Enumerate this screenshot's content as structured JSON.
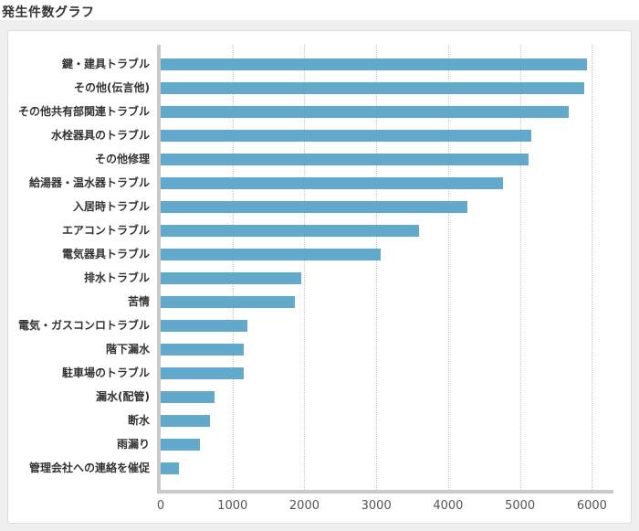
{
  "page": {
    "title": "発生件数グラフ"
  },
  "chart_data": {
    "type": "bar",
    "orientation": "horizontal",
    "title": "発生件数グラフ",
    "xlabel": "",
    "ylabel": "",
    "categories": [
      "鍵・建具トラブル",
      "その他(伝言他)",
      "その他共有部関連トラブル",
      "水栓器具のトラブル",
      "その他修理",
      "給湯器・温水器トラブル",
      "入居時トラブル",
      "エアコントラブル",
      "電気器具トラブル",
      "排水トラブル",
      "苦情",
      "電気・ガスコンロトラブル",
      "階下漏水",
      "駐車場のトラブル",
      "漏水(配管)",
      "断水",
      "雨漏り",
      "管理会社への連絡を催促"
    ],
    "values": [
      5930,
      5890,
      5680,
      5160,
      5120,
      4760,
      4270,
      3590,
      3060,
      1960,
      1870,
      1210,
      1150,
      1160,
      750,
      690,
      550,
      250
    ],
    "x_ticks": [
      0,
      1000,
      2000,
      3000,
      4000,
      5000,
      6000
    ],
    "xlim": [
      0,
      6300
    ],
    "grid": "vertical-dotted",
    "legend": "none",
    "colors": {
      "bar": "#62a9cc",
      "axis": "#c9c9c9",
      "gridline": "#c8c8c8",
      "category_label": "#333333",
      "tick_label": "#555555",
      "panel_background": "#ffffff",
      "panel_border": "#dddddd",
      "outer_background": "#efefef",
      "title": "#333333"
    }
  }
}
